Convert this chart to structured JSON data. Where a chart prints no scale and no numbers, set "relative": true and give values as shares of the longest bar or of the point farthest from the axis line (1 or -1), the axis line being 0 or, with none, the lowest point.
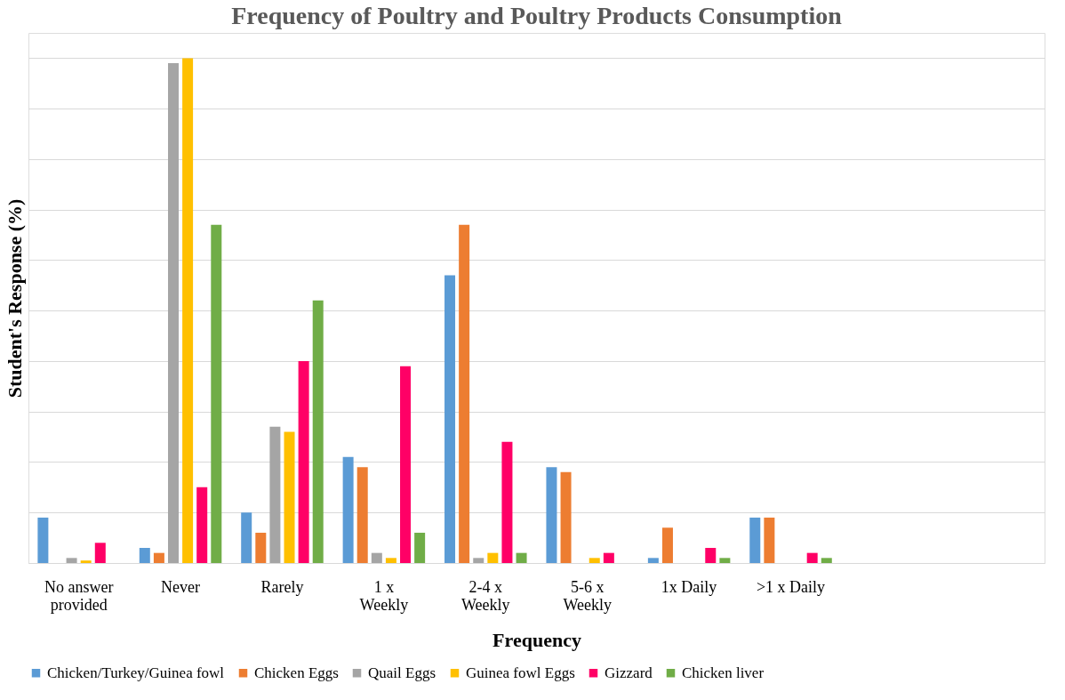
{
  "chart_data": {
    "type": "bar",
    "title": "Frequency of Poultry and Poultry Products Consumption",
    "xlabel": "Frequency",
    "ylabel": "Student's Response (%)",
    "relative": true,
    "grid": "y",
    "legend": "bottom",
    "categories": [
      "No answer\nprovided",
      "Never",
      "Rarely",
      "1 x\nWeekly",
      "2-4 x\nWeekly",
      "5-6 x\nWeekly",
      "1x  Daily",
      ">1 x Daily",
      null,
      null
    ],
    "series": [
      {
        "name": "Chicken/Turkey/Guinea fowl",
        "color": "#5b9bd5",
        "values": [
          0.09,
          0.03,
          0.1,
          0.21,
          0.57,
          0.19,
          0.01,
          0.09,
          null,
          null
        ]
      },
      {
        "name": "Chicken Eggs",
        "color": "#ed7d31",
        "values": [
          0,
          0.02,
          0.06,
          0.19,
          0.67,
          0.18,
          0.07,
          0.09,
          null,
          null
        ]
      },
      {
        "name": "Quail Eggs",
        "color": "#a5a5a5",
        "values": [
          0.01,
          0.99,
          0.27,
          0.02,
          0.01,
          0,
          0,
          0,
          null,
          null
        ]
      },
      {
        "name": "Guinea fowl Eggs",
        "color": "#ffc000",
        "values": [
          0.005,
          1,
          0.26,
          0.01,
          0.02,
          0.01,
          0,
          0,
          null,
          null
        ]
      },
      {
        "name": "Gizzard",
        "color": "#ff0066",
        "values": [
          0.04,
          0.15,
          0.4,
          0.39,
          0.24,
          0.02,
          0.03,
          0.02,
          null,
          null
        ]
      },
      {
        "name": "Chicken liver",
        "color": "#70ad47",
        "values": [
          0,
          0.67,
          0.52,
          0.06,
          0.02,
          0,
          0.01,
          0.01,
          null,
          null
        ]
      }
    ]
  }
}
